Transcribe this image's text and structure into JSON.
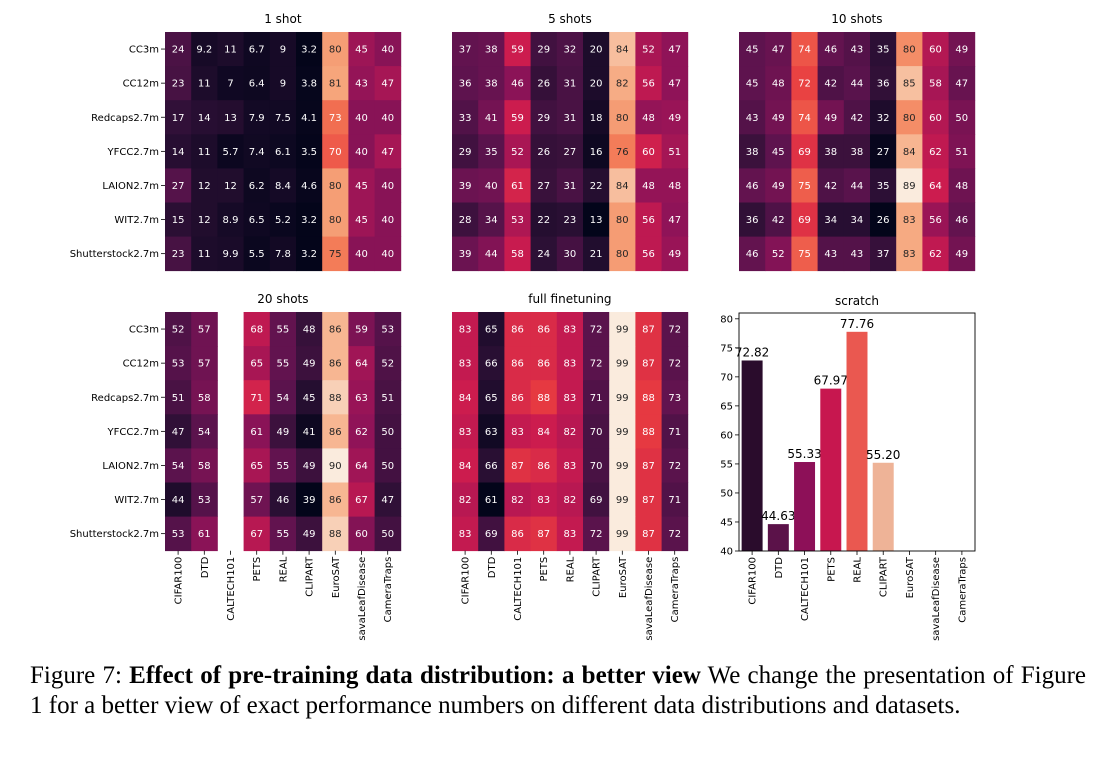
{
  "caption": {
    "label": "Figure 7:",
    "bold": "Effect of pre-training data distribution: a better view",
    "text": "We change the presentation of Figure 1 for a better view of exact performance numbers on different data distributions and datasets."
  },
  "chart_data": [
    {
      "type": "heatmap",
      "title": "1 shot",
      "rows": [
        "CC3m",
        "CC12m",
        "Redcaps2.7m",
        "YFCC2.7m",
        "LAION2.7m",
        "WIT2.7m",
        "Shutterstock2.7m"
      ],
      "columns": [
        "CIFAR100",
        "DTD",
        "CALTECH101",
        "PETS",
        "REAL",
        "CLIPART",
        "EuroSAT",
        "savaLeafDisease",
        "CameraTraps"
      ],
      "values": [
        [
          "24",
          "9.2",
          "11",
          "6.7",
          "9",
          "3.2",
          "80",
          "45",
          "40"
        ],
        [
          "23",
          "11",
          "7",
          "6.4",
          "9",
          "3.8",
          "81",
          "43",
          "47"
        ],
        [
          "17",
          "14",
          "13",
          "7.9",
          "7.5",
          "4.1",
          "73",
          "40",
          "40"
        ],
        [
          "14",
          "11",
          "5.7",
          "7.4",
          "6.1",
          "3.5",
          "70",
          "40",
          "47"
        ],
        [
          "27",
          "12",
          "12",
          "6.2",
          "8.4",
          "4.6",
          "80",
          "45",
          "40"
        ],
        [
          "15",
          "12",
          "8.9",
          "6.5",
          "5.2",
          "3.2",
          "80",
          "45",
          "40"
        ],
        [
          "23",
          "11",
          "9.9",
          "5.5",
          "7.8",
          "3.2",
          "75",
          "40",
          "40"
        ]
      ]
    },
    {
      "type": "heatmap",
      "title": "5 shots",
      "rows": [
        "CC3m",
        "CC12m",
        "Redcaps2.7m",
        "YFCC2.7m",
        "LAION2.7m",
        "WIT2.7m",
        "Shutterstock2.7m"
      ],
      "columns": [
        "CIFAR100",
        "DTD",
        "CALTECH101",
        "PETS",
        "REAL",
        "CLIPART",
        "EuroSAT",
        "savaLeafDisease",
        "CameraTraps"
      ],
      "values": [
        [
          "37",
          "38",
          "59",
          "29",
          "32",
          "20",
          "84",
          "52",
          "47"
        ],
        [
          "36",
          "38",
          "46",
          "26",
          "31",
          "20",
          "82",
          "56",
          "47"
        ],
        [
          "33",
          "41",
          "59",
          "29",
          "31",
          "18",
          "80",
          "48",
          "49"
        ],
        [
          "29",
          "35",
          "52",
          "26",
          "27",
          "16",
          "76",
          "60",
          "51"
        ],
        [
          "39",
          "40",
          "61",
          "27",
          "31",
          "22",
          "84",
          "48",
          "48"
        ],
        [
          "28",
          "34",
          "53",
          "22",
          "23",
          "13",
          "80",
          "56",
          "47"
        ],
        [
          "39",
          "44",
          "58",
          "24",
          "30",
          "21",
          "80",
          "56",
          "49"
        ]
      ]
    },
    {
      "type": "heatmap",
      "title": "10 shots",
      "rows": [
        "CC3m",
        "CC12m",
        "Redcaps2.7m",
        "YFCC2.7m",
        "LAION2.7m",
        "WIT2.7m",
        "Shutterstock2.7m"
      ],
      "columns": [
        "CIFAR100",
        "DTD",
        "CALTECH101",
        "PETS",
        "REAL",
        "CLIPART",
        "EuroSAT",
        "savaLeafDisease",
        "CameraTraps"
      ],
      "values": [
        [
          "45",
          "47",
          "74",
          "46",
          "43",
          "35",
          "80",
          "60",
          "49"
        ],
        [
          "45",
          "48",
          "72",
          "42",
          "44",
          "36",
          "85",
          "58",
          "47"
        ],
        [
          "43",
          "49",
          "74",
          "49",
          "42",
          "32",
          "80",
          "60",
          "50"
        ],
        [
          "38",
          "45",
          "69",
          "38",
          "38",
          "27",
          "84",
          "62",
          "51"
        ],
        [
          "46",
          "49",
          "75",
          "42",
          "44",
          "35",
          "89",
          "64",
          "48"
        ],
        [
          "36",
          "42",
          "69",
          "34",
          "34",
          "26",
          "83",
          "56",
          "46"
        ],
        [
          "46",
          "52",
          "75",
          "43",
          "43",
          "37",
          "83",
          "62",
          "49"
        ]
      ]
    },
    {
      "type": "heatmap",
      "title": "20 shots",
      "rows": [
        "CC3m",
        "CC12m",
        "Redcaps2.7m",
        "YFCC2.7m",
        "LAION2.7m",
        "WIT2.7m",
        "Shutterstock2.7m"
      ],
      "columns": [
        "CIFAR100",
        "DTD",
        "CALTECH101",
        "PETS",
        "REAL",
        "CLIPART",
        "EuroSAT",
        "savaLeafDisease",
        "CameraTraps"
      ],
      "values": [
        [
          "52",
          "57",
          "",
          "68",
          "55",
          "48",
          "86",
          "59",
          "53"
        ],
        [
          "53",
          "57",
          "",
          "65",
          "55",
          "49",
          "86",
          "64",
          "52"
        ],
        [
          "51",
          "58",
          "",
          "71",
          "54",
          "45",
          "88",
          "63",
          "51"
        ],
        [
          "47",
          "54",
          "",
          "61",
          "49",
          "41",
          "86",
          "62",
          "50"
        ],
        [
          "54",
          "58",
          "",
          "65",
          "55",
          "49",
          "90",
          "64",
          "50"
        ],
        [
          "44",
          "53",
          "",
          "57",
          "46",
          "39",
          "86",
          "67",
          "47"
        ],
        [
          "53",
          "61",
          "",
          "67",
          "55",
          "49",
          "88",
          "60",
          "50"
        ]
      ]
    },
    {
      "type": "heatmap",
      "title": "full finetuning",
      "rows": [
        "CC3m",
        "CC12m",
        "Redcaps2.7m",
        "YFCC2.7m",
        "LAION2.7m",
        "WIT2.7m",
        "Shutterstock2.7m"
      ],
      "columns": [
        "CIFAR100",
        "DTD",
        "CALTECH101",
        "PETS",
        "REAL",
        "CLIPART",
        "EuroSAT",
        "savaLeafDisease",
        "CameraTraps"
      ],
      "values": [
        [
          "83",
          "65",
          "86",
          "86",
          "83",
          "72",
          "99",
          "87",
          "72"
        ],
        [
          "83",
          "66",
          "86",
          "86",
          "83",
          "72",
          "99",
          "87",
          "72"
        ],
        [
          "84",
          "65",
          "86",
          "88",
          "83",
          "71",
          "99",
          "88",
          "73"
        ],
        [
          "83",
          "63",
          "83",
          "84",
          "82",
          "70",
          "99",
          "88",
          "71"
        ],
        [
          "84",
          "66",
          "87",
          "86",
          "83",
          "70",
          "99",
          "87",
          "72"
        ],
        [
          "82",
          "61",
          "82",
          "83",
          "82",
          "69",
          "99",
          "87",
          "71"
        ],
        [
          "83",
          "69",
          "86",
          "87",
          "83",
          "72",
          "99",
          "87",
          "72"
        ]
      ]
    },
    {
      "type": "bar",
      "title": "scratch",
      "categories": [
        "CIFAR100",
        "DTD",
        "CALTECH101",
        "PETS",
        "REAL",
        "CLIPART",
        "EuroSAT",
        "savaLeafDisease",
        "CameraTraps"
      ],
      "values": [
        72.82,
        44.63,
        55.33,
        67.97,
        77.76,
        55.2,
        null,
        null,
        null
      ],
      "value_labels": [
        "72.82",
        "44.63",
        "55.33",
        "67.97",
        "77.76",
        "55.20",
        "",
        "",
        ""
      ],
      "colors": [
        "#2a0c2c",
        "#5b1249",
        "#8d1058",
        "#c7174f",
        "#ea5850",
        "#eeb397",
        "",
        "",
        ""
      ],
      "ylim": [
        40,
        81
      ],
      "yticks": [
        "40",
        "45",
        "50",
        "55",
        "60",
        "65",
        "70",
        "75",
        "80"
      ]
    }
  ]
}
